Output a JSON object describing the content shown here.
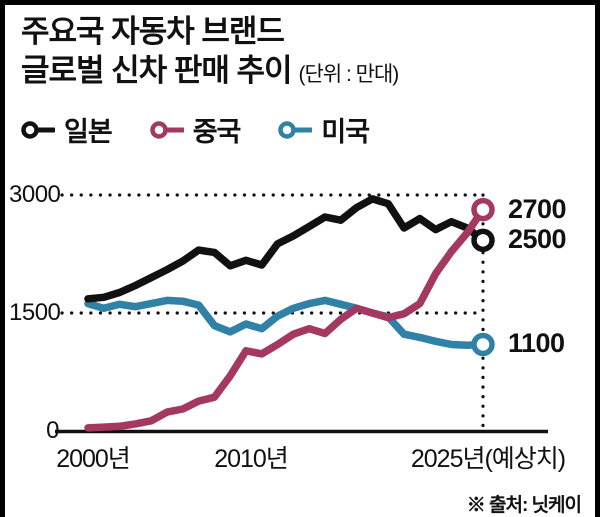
{
  "title": {
    "line1": "주요국 자동차 브랜드",
    "line2": "글로벌 신차 판매 추이",
    "unit": "(단위 : 만대)"
  },
  "legend": [
    {
      "label": "일본",
      "color": "#111111"
    },
    {
      "label": "중국",
      "color": "#a53860"
    },
    {
      "label": "미국",
      "color": "#2f81a6"
    }
  ],
  "source": "※ 출처: 닛케이",
  "chart_data": {
    "type": "line",
    "title": "주요국 자동차 브랜드 글로벌 신차 판매 추이",
    "unit": "만대",
    "x": [
      2000,
      2001,
      2002,
      2003,
      2004,
      2005,
      2006,
      2007,
      2008,
      2009,
      2010,
      2011,
      2012,
      2013,
      2014,
      2015,
      2016,
      2017,
      2018,
      2019,
      2020,
      2021,
      2022,
      2023,
      2024,
      2025
    ],
    "series": [
      {
        "name": "일본",
        "color": "#111111",
        "end_label": "2500",
        "values": [
          1680,
          1700,
          1760,
          1850,
          1950,
          2050,
          2160,
          2300,
          2270,
          2100,
          2170,
          2110,
          2380,
          2480,
          2600,
          2720,
          2680,
          2840,
          2950,
          2890,
          2580,
          2700,
          2560,
          2660,
          2580,
          2500
        ]
      },
      {
        "name": "중국",
        "color": "#a53860",
        "end_label": "2700",
        "values": [
          40,
          50,
          60,
          90,
          130,
          240,
          280,
          380,
          430,
          700,
          1020,
          980,
          1100,
          1230,
          1300,
          1240,
          1420,
          1560,
          1500,
          1440,
          1490,
          1620,
          2000,
          2280,
          2520,
          2700
        ]
      },
      {
        "name": "미국",
        "color": "#2f81a6",
        "end_label": "1100",
        "values": [
          1620,
          1560,
          1610,
          1580,
          1620,
          1660,
          1650,
          1600,
          1340,
          1260,
          1360,
          1300,
          1460,
          1560,
          1620,
          1660,
          1610,
          1560,
          1500,
          1450,
          1230,
          1190,
          1140,
          1100,
          1090,
          1100
        ]
      }
    ],
    "ylim": [
      0,
      3100
    ],
    "yticks": [
      3000,
      1500,
      0
    ],
    "ytick_labels": [
      "3000",
      "1500",
      "0"
    ],
    "xtick_labels": [
      {
        "year": 2000,
        "label": "2000년"
      },
      {
        "year": 2010,
        "label": "2010년"
      },
      {
        "year": 2025,
        "label": "2025년(예상치)"
      }
    ],
    "grid_y": [
      3000,
      1500
    ],
    "vline_year": 2025,
    "grid": "dotted horizontal at 1500 and 3000, dotted vertical at 2025",
    "legend_position": "top-left"
  }
}
